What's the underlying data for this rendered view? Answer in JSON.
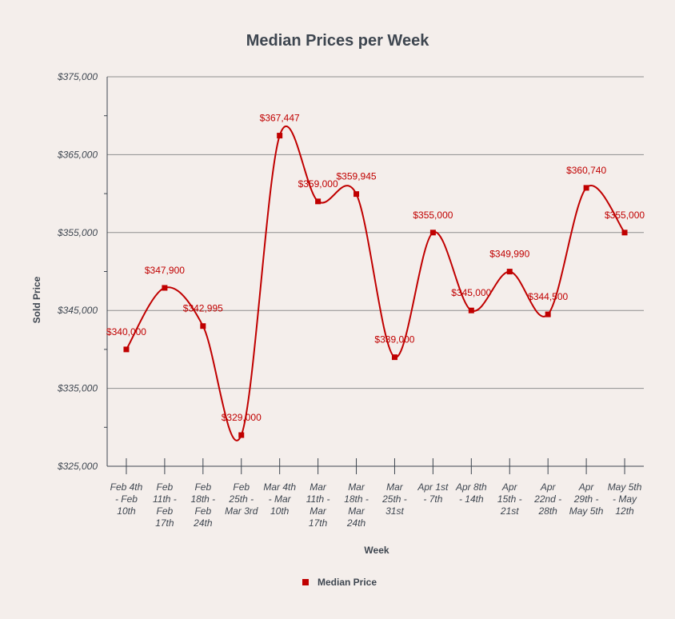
{
  "chart_data": {
    "type": "line",
    "title": "Median Prices per Week",
    "xlabel": "Week",
    "ylabel": "Sold Price",
    "ylim": [
      325000,
      375000
    ],
    "y_ticks": [
      325000,
      335000,
      345000,
      355000,
      365000,
      375000
    ],
    "y_tick_labels": [
      "$325,000",
      "$335,000",
      "$345,000",
      "$355,000",
      "$365,000",
      "$375,000"
    ],
    "categories": [
      "Feb 4th - Feb 10th",
      "Feb 11th - Feb 17th",
      "Feb 18th - Feb 24th",
      "Feb 25th - Mar 3rd",
      "Mar 4th - Mar 10th",
      "Mar 11th - Mar 17th",
      "Mar 18th - Mar 24th",
      "Mar 25th - 31st",
      "Apr 1st - 7th",
      "Apr 8th - 14th",
      "Apr 15th - 21st",
      "Apr 22nd - 28th",
      "Apr 29th - May 5th",
      "May 5th - May 12th"
    ],
    "category_lines": [
      [
        "Feb 4th",
        "- Feb",
        "10th"
      ],
      [
        "Feb",
        "11th -",
        "Feb",
        "17th"
      ],
      [
        "Feb",
        "18th -",
        "Feb",
        "24th"
      ],
      [
        "Feb",
        "25th -",
        "Mar 3rd"
      ],
      [
        "Mar 4th",
        "- Mar",
        "10th"
      ],
      [
        "Mar",
        "11th -",
        "Mar",
        "17th"
      ],
      [
        "Mar",
        "18th -",
        "Mar",
        "24th"
      ],
      [
        "Mar",
        "25th -",
        "31st"
      ],
      [
        "Apr 1st",
        "- 7th"
      ],
      [
        "Apr 8th",
        "- 14th"
      ],
      [
        "Apr",
        "15th -",
        "21st"
      ],
      [
        "Apr",
        "22nd -",
        "28th"
      ],
      [
        "Apr",
        "29th -",
        "May 5th"
      ],
      [
        "May 5th",
        "- May",
        "12th"
      ]
    ],
    "series": [
      {
        "name": "Median Price",
        "color": "#c00000",
        "values": [
          340000,
          347900,
          342995,
          329000,
          367447,
          359000,
          359945,
          339000,
          355000,
          345000,
          349990,
          344500,
          360740,
          355000
        ],
        "labels": [
          "$340,000",
          "$347,900",
          "$342,995",
          "$329,000",
          "$367,447",
          "$359,000",
          "$359,945",
          "$339,000",
          "$355,000",
          "$345,000",
          "$349,990",
          "$344,500",
          "$360,740",
          "$355,000"
        ]
      }
    ],
    "grid": true,
    "smooth": true,
    "legend": "bottom-center"
  }
}
